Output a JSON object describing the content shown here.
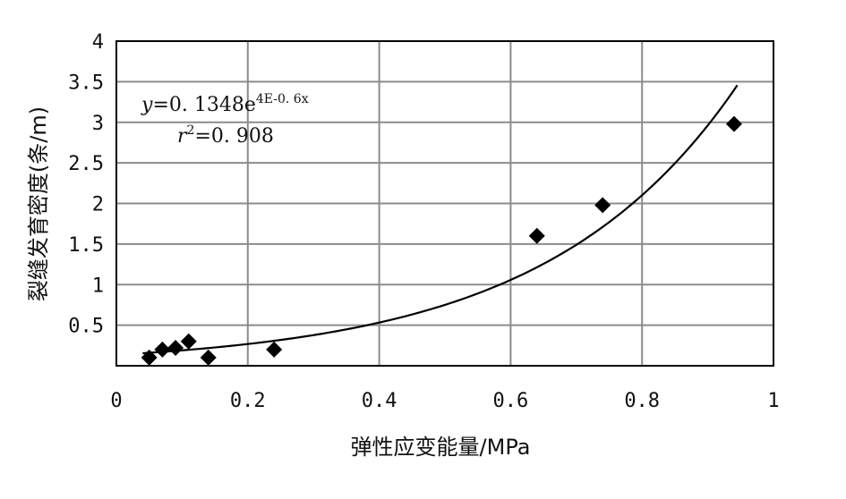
{
  "chart_data": {
    "type": "scatter",
    "xlabel": "弹性应变能量/MPa",
    "ylabel": "裂缝发育密度(条/m)",
    "xlim": [
      0,
      1
    ],
    "ylim": [
      0,
      4
    ],
    "x_ticks": [
      "0",
      "0.2",
      "0.4",
      "0.6",
      "0.8",
      "1"
    ],
    "y_ticks": [
      "0.5",
      "1",
      "1.5",
      "2",
      "2.5",
      "3",
      "3.5",
      "4"
    ],
    "grid": true,
    "legend": "none",
    "marker_color": "#000000",
    "series": [
      {
        "marker": "diamond",
        "points": [
          {
            "x": 0.05,
            "y": 0.1
          },
          {
            "x": 0.07,
            "y": 0.2
          },
          {
            "x": 0.09,
            "y": 0.22
          },
          {
            "x": 0.11,
            "y": 0.3
          },
          {
            "x": 0.14,
            "y": 0.1
          },
          {
            "x": 0.24,
            "y": 0.2
          },
          {
            "x": 0.64,
            "y": 1.6
          },
          {
            "x": 0.74,
            "y": 1.98
          },
          {
            "x": 0.94,
            "y": 2.98
          }
        ]
      }
    ],
    "trendline": {
      "type": "exponential",
      "coefficient": 0.1348,
      "x_range": [
        0.04,
        0.945
      ]
    },
    "annotation": {
      "equation": {
        "y_var": "y",
        "equals_coef": "=0. 1348e",
        "exponent": "4E-0. 6x"
      },
      "r2": {
        "var": "r",
        "sup": "2",
        "value": "=0. 908"
      }
    }
  }
}
